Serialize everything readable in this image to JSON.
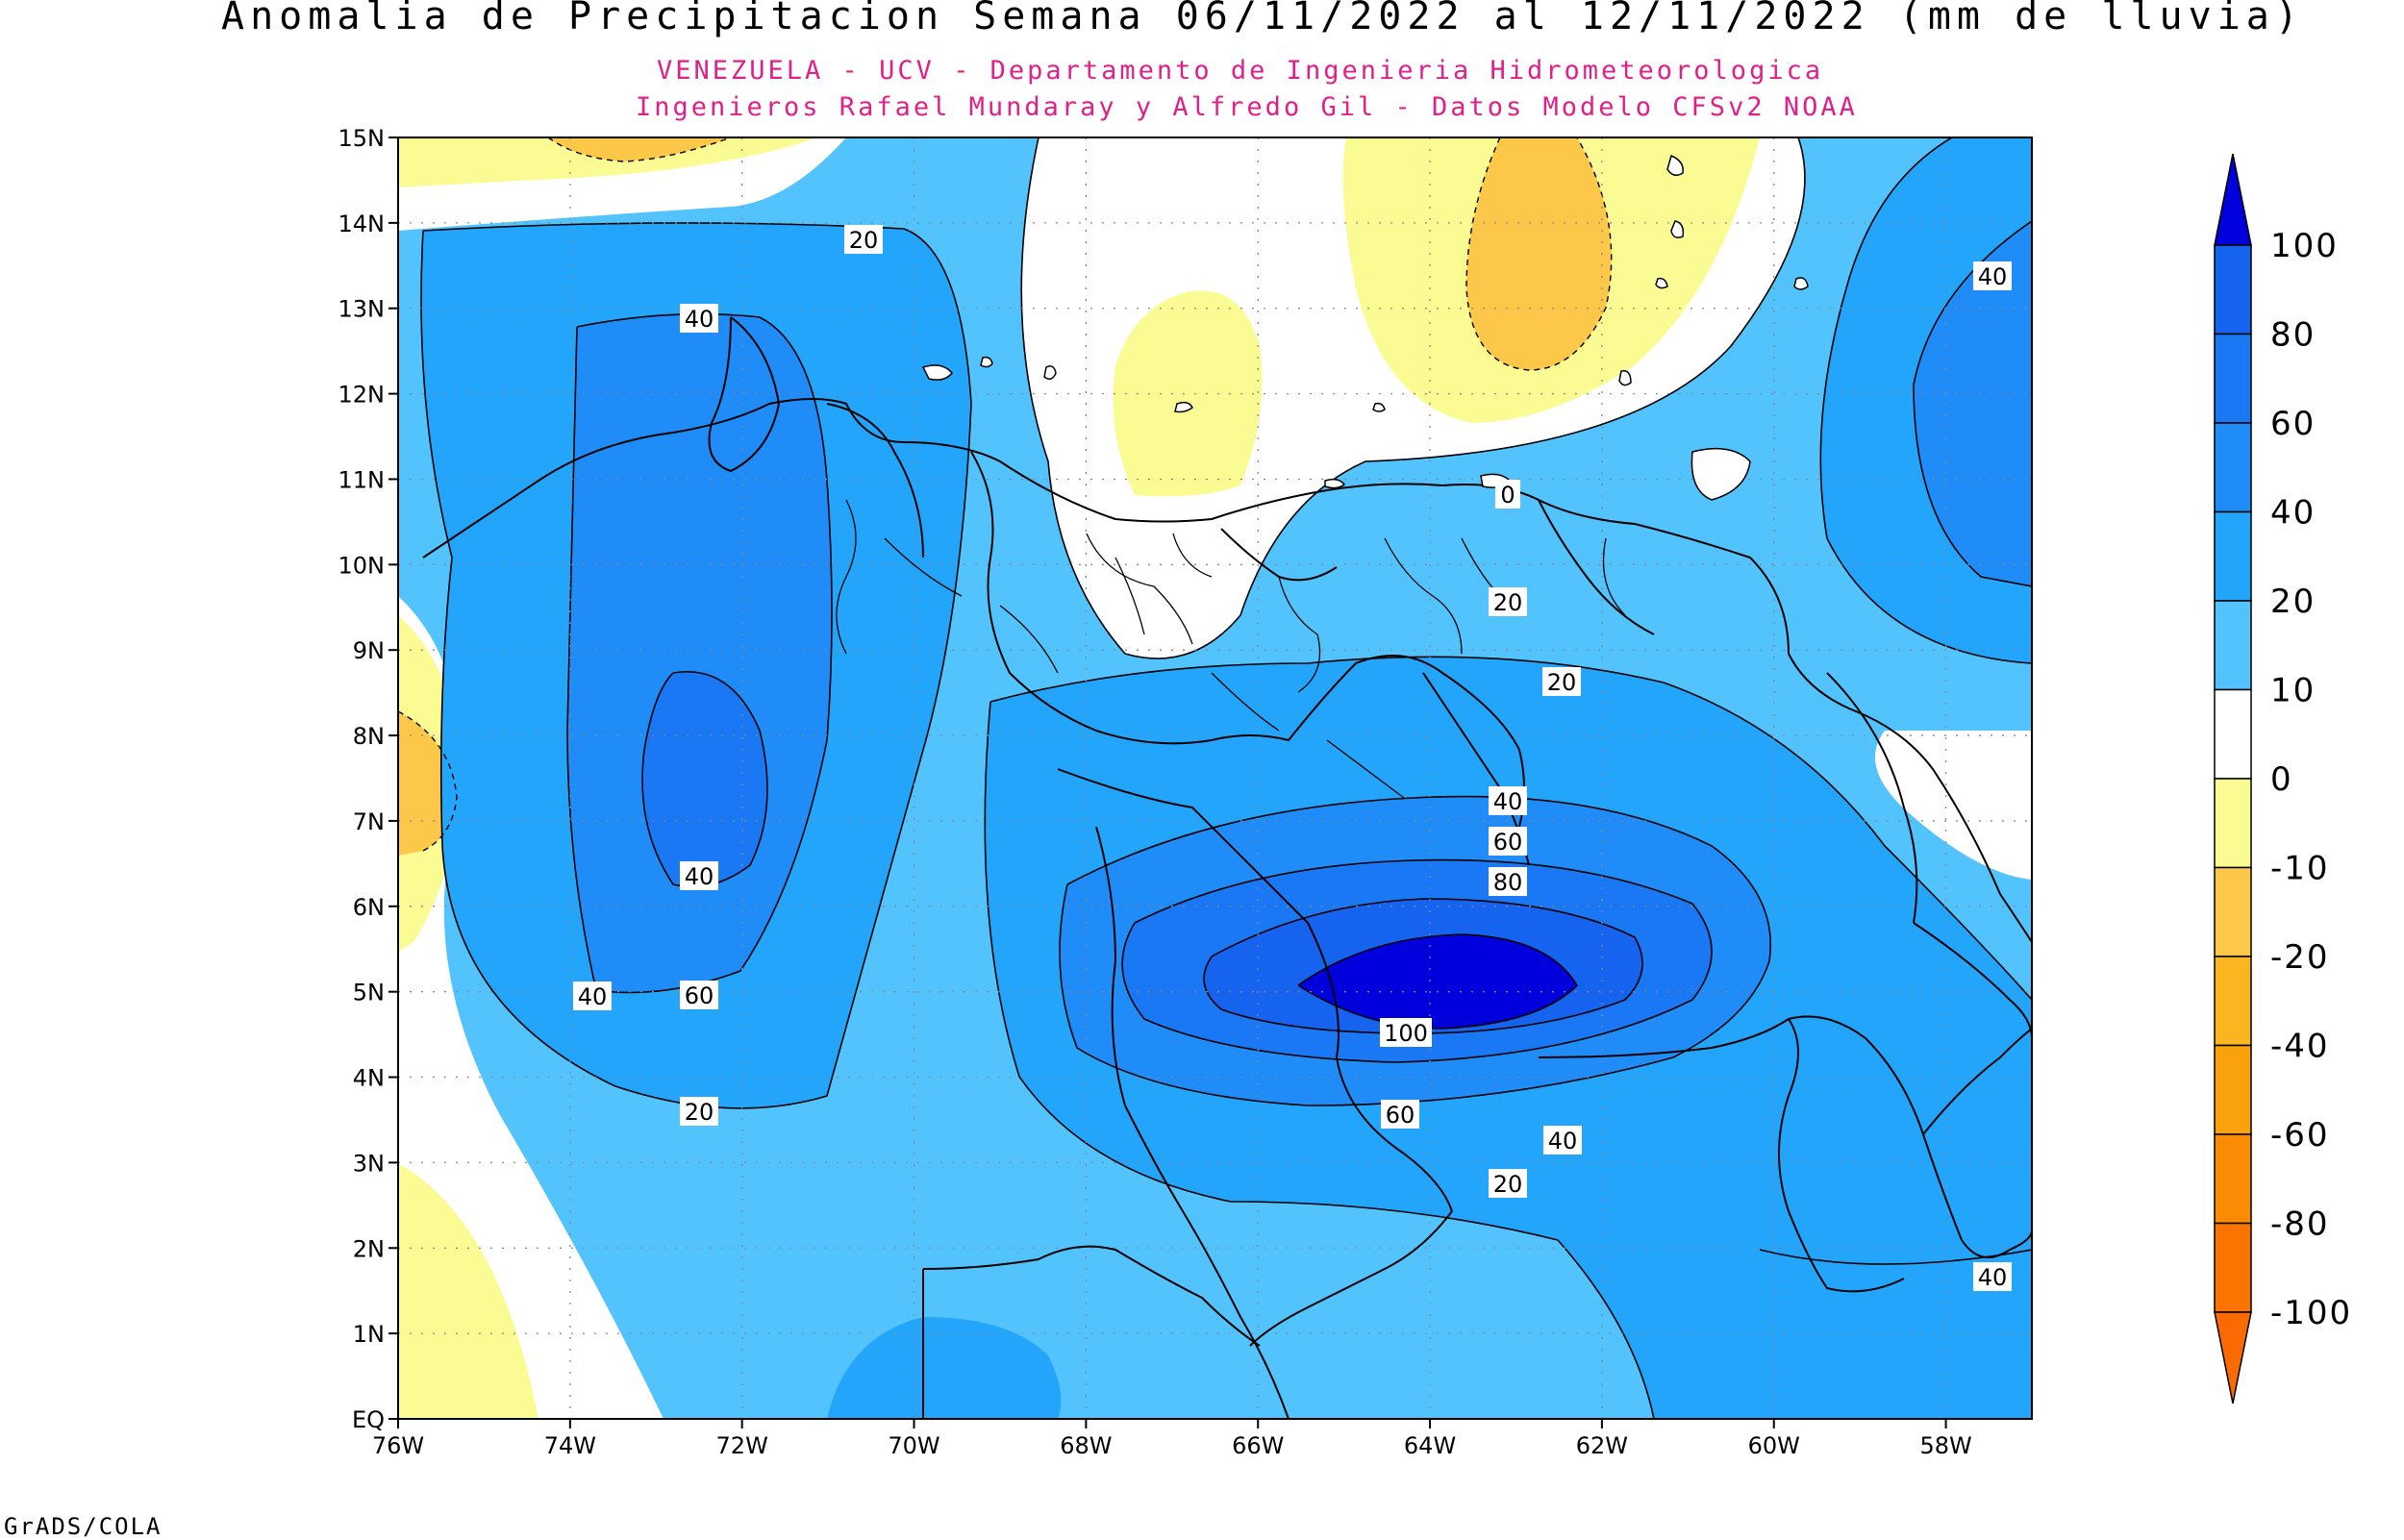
{
  "title": "Anomalia de Precipitacion Semana 06/11/2022 al 12/11/2022 (mm de lluvia)",
  "subtitle_1": "VENEZUELA - UCV - Departamento de Ingenieria Hidrometeorologica",
  "subtitle_2": "Ingenieros Rafael Mundaray y Alfredo Gil - Datos Modelo CFSv2 NOAA",
  "footer": "GrADS/COLA",
  "map": {
    "lat_labels": [
      "15N",
      "14N",
      "13N",
      "12N",
      "11N",
      "10N",
      "9N",
      "8N",
      "7N",
      "6N",
      "5N",
      "4N",
      "3N",
      "2N",
      "1N",
      "EQ"
    ],
    "lon_labels": [
      "76W",
      "74W",
      "72W",
      "70W",
      "68W",
      "66W",
      "64W",
      "62W",
      "60W",
      "58W"
    ],
    "lon_range": [
      -76,
      -57
    ],
    "lat_range": [
      0,
      15
    ],
    "grid": "dotted"
  },
  "colorbar": {
    "labels": [
      "100",
      "80",
      "60",
      "40",
      "20",
      "10",
      "0",
      "-10",
      "-20",
      "-40",
      "-60",
      "-80",
      "-100"
    ],
    "colors": [
      "#1d3ce6",
      "#1663f0",
      "#1a78f5",
      "#1f8cf7",
      "#22a5fa",
      "#52c3fc",
      "#ffffff",
      "#fbfb94",
      "#fdc84a",
      "#fbb520",
      "#f9a20c",
      "#f98c04",
      "#f97400"
    ],
    "top_color": "#0000dc",
    "bottom_color": "#f96a00"
  },
  "contour_labels": [
    "20",
    "40",
    "40",
    "60",
    "40",
    "20",
    "40",
    "20",
    "0",
    "20",
    "40",
    "60",
    "80",
    "100",
    "60",
    "40",
    "20",
    "40"
  ],
  "palette": {
    "blue_10_20": "#52c3fc",
    "blue_20_40": "#22a5fa",
    "blue_40_60": "#1f8cf7",
    "blue_60_80": "#1a78f5",
    "blue_80_100": "#1663f0",
    "blue_100": "#0000dc",
    "white": "#ffffff",
    "yellow": "#fbfb94",
    "orange": "#fdc84a",
    "title_magenta": "#e0208a"
  }
}
